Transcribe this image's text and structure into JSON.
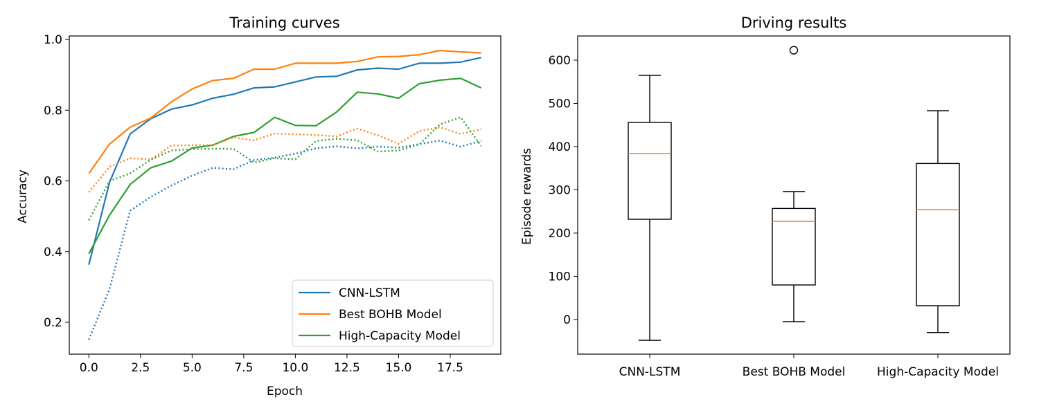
{
  "chart_data": [
    {
      "type": "line",
      "title": "Training curves",
      "xlabel": "Epoch",
      "ylabel": "Accuracy",
      "xlim": [
        -0.95,
        19.95
      ],
      "ylim": [
        0.11,
        1.01
      ],
      "xticks": [
        0.0,
        2.5,
        5.0,
        7.5,
        10.0,
        12.5,
        15.0,
        17.5
      ],
      "xtick_labels": [
        "0.0",
        "2.5",
        "5.0",
        "7.5",
        "10.0",
        "12.5",
        "15.0",
        "17.5"
      ],
      "yticks": [
        0.2,
        0.4,
        0.6,
        0.8,
        1.0
      ],
      "ytick_labels": [
        "0.2",
        "0.4",
        "0.6",
        "0.8",
        "1.0"
      ],
      "legend_position": "bottom-right",
      "x": [
        0,
        1,
        2,
        3,
        4,
        5,
        6,
        7,
        8,
        9,
        10,
        11,
        12,
        13,
        14,
        15,
        16,
        17,
        18,
        19
      ],
      "series": [
        {
          "name": "CNN-LSTM",
          "style": "solid",
          "color": "#1f77b4",
          "values": [
            0.363,
            0.596,
            0.733,
            0.776,
            0.803,
            0.815,
            0.834,
            0.845,
            0.863,
            0.866,
            0.88,
            0.894,
            0.896,
            0.914,
            0.919,
            0.916,
            0.933,
            0.933,
            0.936,
            0.949
          ]
        },
        {
          "name": "Best BOHB Model",
          "style": "solid",
          "color": "#ff7f0e",
          "values": [
            0.621,
            0.704,
            0.752,
            0.778,
            0.824,
            0.86,
            0.884,
            0.89,
            0.916,
            0.916,
            0.933,
            0.933,
            0.933,
            0.938,
            0.951,
            0.952,
            0.957,
            0.969,
            0.965,
            0.962
          ]
        },
        {
          "name": "High-Capacity Model",
          "style": "solid",
          "color": "#2ca02c",
          "values": [
            0.394,
            0.503,
            0.59,
            0.637,
            0.656,
            0.693,
            0.701,
            0.726,
            0.737,
            0.78,
            0.757,
            0.756,
            0.795,
            0.851,
            0.846,
            0.834,
            0.875,
            0.885,
            0.89,
            0.863
          ]
        },
        {
          "style": "dotted",
          "color": "#1f77b4",
          "values": [
            0.151,
            0.294,
            0.516,
            0.555,
            0.587,
            0.615,
            0.637,
            0.633,
            0.659,
            0.666,
            0.677,
            0.692,
            0.698,
            0.692,
            0.697,
            0.694,
            0.704,
            0.714,
            0.697,
            0.713
          ]
        },
        {
          "style": "dotted",
          "color": "#ff7f0e",
          "values": [
            0.568,
            0.64,
            0.664,
            0.661,
            0.7,
            0.701,
            0.701,
            0.723,
            0.715,
            0.734,
            0.732,
            0.73,
            0.726,
            0.748,
            0.729,
            0.705,
            0.741,
            0.752,
            0.733,
            0.746
          ]
        },
        {
          "style": "dotted",
          "color": "#2ca02c",
          "values": [
            0.489,
            0.6,
            0.621,
            0.66,
            0.686,
            0.69,
            0.691,
            0.691,
            0.652,
            0.664,
            0.661,
            0.713,
            0.719,
            0.715,
            0.683,
            0.686,
            0.703,
            0.76,
            0.78,
            0.699
          ]
        }
      ]
    },
    {
      "type": "box",
      "title": "Driving results",
      "xlabel": "",
      "ylabel": "Episode rewards",
      "ylim": [
        -80,
        656
      ],
      "yticks": [
        0,
        100,
        200,
        300,
        400,
        500,
        600
      ],
      "ytick_labels": [
        "0",
        "100",
        "200",
        "300",
        "400",
        "500",
        "600"
      ],
      "categories": [
        "CNN-LSTM",
        "Best BOHB Model",
        "High-Capacity Model"
      ],
      "box_color": "#000000",
      "median_color": "#ff7f0e",
      "boxes": [
        {
          "whisker_low": -48,
          "q1": 232,
          "median": 384,
          "q3": 456,
          "whisker_high": 565,
          "outliers": []
        },
        {
          "whisker_low": -5,
          "q1": 80,
          "median": 227,
          "q3": 257,
          "whisker_high": 296,
          "outliers": [
            623
          ]
        },
        {
          "whisker_low": -30,
          "q1": 32,
          "median": 254,
          "q3": 361,
          "whisker_high": 483,
          "outliers": []
        }
      ]
    }
  ]
}
